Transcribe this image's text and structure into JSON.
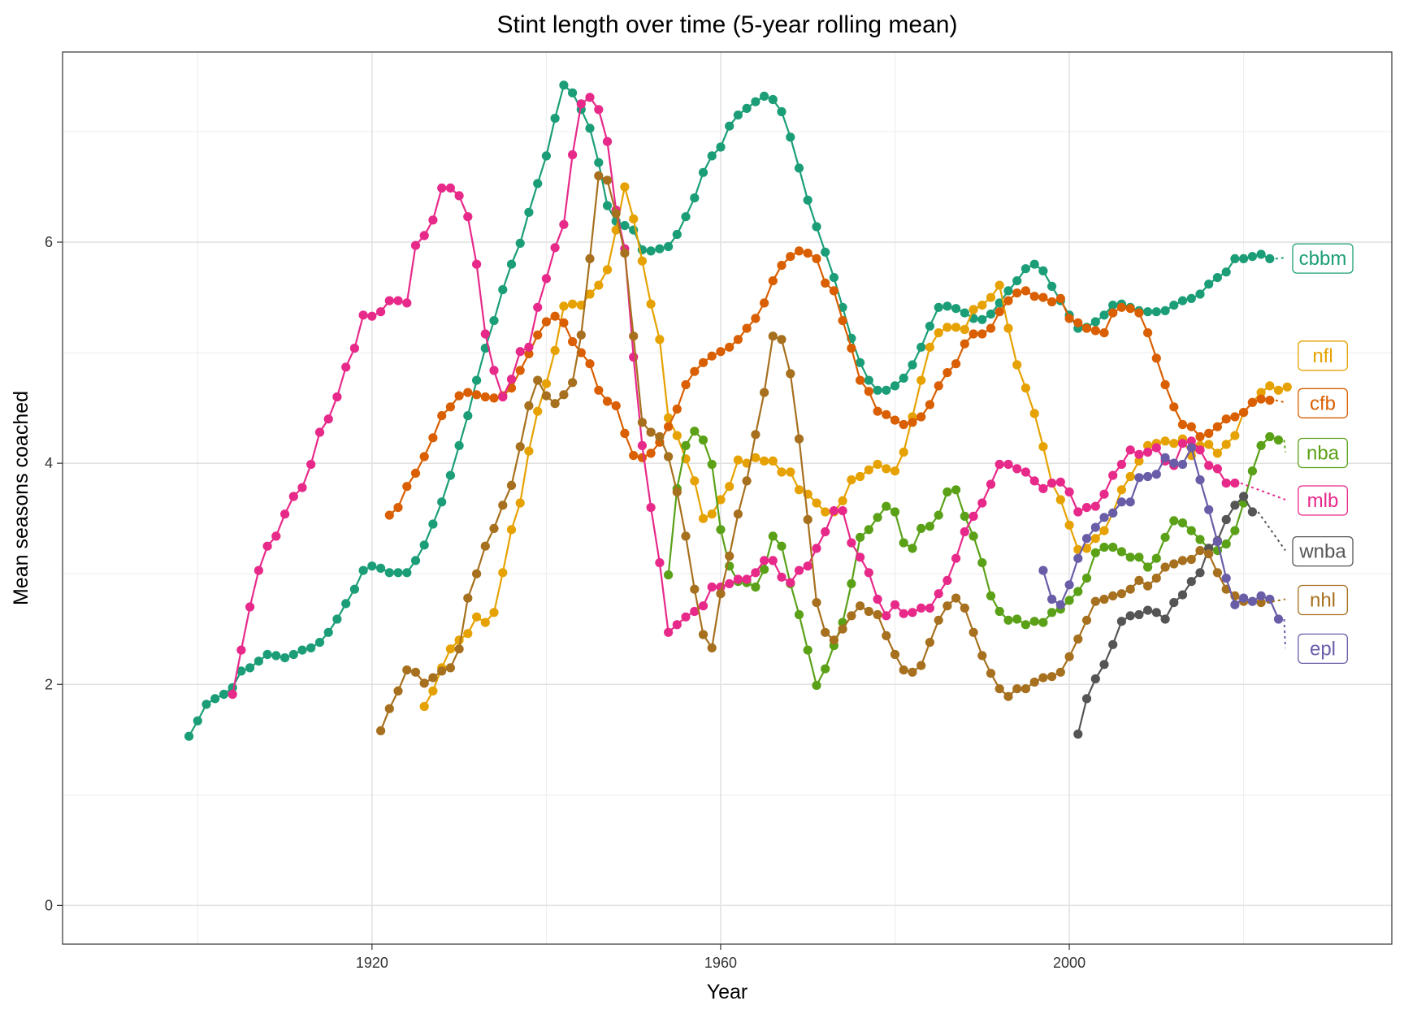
{
  "chart_data": {
    "type": "line",
    "title": "Stint length over time (5-year rolling mean)",
    "xlabel": "Year",
    "ylabel": "Mean seasons coached",
    "xlim": [
      1884.5,
      2037
    ],
    "ylim": [
      -0.35,
      7.72
    ],
    "x_ticks": [
      1920,
      1960,
      2000
    ],
    "y_ticks": [
      0,
      2,
      4,
      6
    ],
    "grid": true,
    "legend": "direct-labels-right",
    "series": [
      {
        "name": "cbbm",
        "color": "#1B9E77",
        "label_y": 5.86,
        "start": 1899,
        "values": [
          1.53,
          1.67,
          1.82,
          1.87,
          1.91,
          1.97,
          2.12,
          2.15,
          2.21,
          2.27,
          2.26,
          2.24,
          2.27,
          2.31,
          2.33,
          2.38,
          2.47,
          2.59,
          2.73,
          2.86,
          3.03,
          3.07,
          3.05,
          3.01,
          3.01,
          3.01,
          3.12,
          3.26,
          3.45,
          3.65,
          3.89,
          4.16,
          4.43,
          4.75,
          5.04,
          5.29,
          5.57,
          5.8,
          5.99,
          6.27,
          6.53,
          6.78,
          7.12,
          7.42,
          7.35,
          7.2,
          7.03,
          6.72,
          6.33,
          6.19,
          6.15,
          6.11,
          5.93,
          5.92,
          5.94,
          5.96,
          6.07,
          6.23,
          6.4,
          6.63,
          6.78,
          6.86,
          7.05,
          7.15,
          7.21,
          7.27,
          7.32,
          7.29,
          7.18,
          6.95,
          6.67,
          6.38,
          6.14,
          5.91,
          5.68,
          5.41,
          5.13,
          4.91,
          4.75,
          4.66,
          4.66,
          4.7,
          4.77,
          4.89,
          5.05,
          5.24,
          5.41,
          5.42,
          5.4,
          5.36,
          5.31,
          5.3,
          5.35,
          5.45,
          5.56,
          5.65,
          5.76,
          5.8,
          5.74,
          5.6,
          5.47,
          5.34,
          5.22,
          5.23,
          5.28,
          5.34,
          5.43,
          5.44,
          5.41,
          5.38,
          5.37,
          5.37,
          5.38,
          5.43,
          5.47,
          5.49,
          5.53,
          5.62,
          5.68,
          5.73,
          5.85,
          5.85,
          5.87,
          5.89,
          5.85
        ]
      },
      {
        "name": "nfl",
        "color": "#E6A202",
        "label_y": 4.98,
        "start": 1926,
        "values": [
          1.8,
          1.94,
          2.15,
          2.32,
          2.4,
          2.46,
          2.61,
          2.56,
          2.65,
          3.01,
          3.4,
          3.64,
          4.11,
          4.47,
          4.72,
          5.02,
          5.42,
          5.44,
          5.43,
          5.53,
          5.61,
          5.75,
          6.11,
          6.5,
          6.21,
          5.83,
          5.44,
          5.12,
          4.41,
          4.25,
          4.04,
          3.84,
          3.5,
          3.54,
          3.67,
          3.79,
          4.03,
          4.0,
          4.05,
          4.02,
          4.02,
          3.92,
          3.92,
          3.76,
          3.72,
          3.64,
          3.56,
          3.56,
          3.66,
          3.85,
          3.88,
          3.94,
          3.99,
          3.95,
          3.93,
          4.1,
          4.42,
          4.75,
          5.05,
          5.18,
          5.23,
          5.23,
          5.21,
          5.39,
          5.43,
          5.5,
          5.61,
          5.22,
          4.89,
          4.68,
          4.45,
          4.15,
          3.82,
          3.67,
          3.44,
          3.22,
          3.23,
          3.32,
          3.39,
          3.55,
          3.76,
          3.88,
          4.02,
          4.16,
          4.18,
          4.2,
          4.18,
          4.22,
          4.07,
          4.16,
          4.17,
          4.09,
          4.17,
          4.25,
          4.46,
          4.55,
          4.64,
          4.7,
          4.66,
          4.69
        ]
      },
      {
        "name": "cfb",
        "color": "#D95F02",
        "label_y": 4.55,
        "start": 1922,
        "values": [
          3.53,
          3.6,
          3.79,
          3.91,
          4.06,
          4.23,
          4.43,
          4.51,
          4.61,
          4.64,
          4.62,
          4.6,
          4.59,
          4.61,
          4.68,
          4.84,
          4.99,
          5.16,
          5.28,
          5.33,
          5.27,
          5.1,
          5.0,
          4.9,
          4.66,
          4.56,
          4.52,
          4.27,
          4.07,
          4.05,
          4.09,
          4.19,
          4.33,
          4.49,
          4.71,
          4.83,
          4.91,
          4.97,
          5.01,
          5.05,
          5.12,
          5.22,
          5.31,
          5.45,
          5.65,
          5.79,
          5.87,
          5.92,
          5.9,
          5.85,
          5.63,
          5.56,
          5.29,
          5.04,
          4.75,
          4.65,
          4.47,
          4.44,
          4.39,
          4.35,
          4.37,
          4.42,
          4.53,
          4.7,
          4.82,
          4.9,
          5.08,
          5.17,
          5.17,
          5.22,
          5.37,
          5.47,
          5.54,
          5.56,
          5.51,
          5.5,
          5.46,
          5.49,
          5.31,
          5.27,
          5.22,
          5.2,
          5.18,
          5.36,
          5.41,
          5.4,
          5.36,
          5.18,
          4.95,
          4.71,
          4.51,
          4.35,
          4.33,
          4.24,
          4.27,
          4.33,
          4.4,
          4.42,
          4.46,
          4.55,
          4.58,
          4.57
        ]
      },
      {
        "name": "nba",
        "color": "#5AA118",
        "label_y": 4.1,
        "start": 1954,
        "values": [
          2.99,
          3.77,
          4.16,
          4.29,
          4.21,
          3.99,
          3.4,
          3.07,
          2.93,
          2.92,
          2.88,
          3.04,
          3.34,
          3.25,
          2.91,
          2.63,
          2.31,
          1.99,
          2.14,
          2.35,
          2.56,
          2.91,
          3.33,
          3.4,
          3.51,
          3.61,
          3.56,
          3.28,
          3.23,
          3.41,
          3.43,
          3.53,
          3.74,
          3.76,
          3.52,
          3.34,
          3.1,
          2.8,
          2.66,
          2.58,
          2.59,
          2.54,
          2.57,
          2.56,
          2.65,
          2.68,
          2.76,
          2.84,
          2.96,
          3.19,
          3.24,
          3.24,
          3.2,
          3.15,
          3.15,
          3.06,
          3.14,
          3.33,
          3.48,
          3.46,
          3.39,
          3.31,
          3.23,
          3.21,
          3.27,
          3.39,
          3.64,
          3.93,
          4.16,
          4.24,
          4.21
        ]
      },
      {
        "name": "mlb",
        "color": "#E7298A",
        "label_y": 3.67,
        "start": 1904,
        "values": [
          1.91,
          2.31,
          2.7,
          3.03,
          3.25,
          3.34,
          3.54,
          3.7,
          3.78,
          3.99,
          4.28,
          4.4,
          4.6,
          4.87,
          5.04,
          5.34,
          5.33,
          5.37,
          5.47,
          5.47,
          5.45,
          5.97,
          6.06,
          6.2,
          6.49,
          6.49,
          6.42,
          6.23,
          5.8,
          5.17,
          4.84,
          4.6,
          4.76,
          5.01,
          5.05,
          5.41,
          5.67,
          5.95,
          6.16,
          6.79,
          7.25,
          7.31,
          7.2,
          6.91,
          6.29,
          5.94,
          4.96,
          4.16,
          3.6,
          3.1,
          2.47,
          2.54,
          2.61,
          2.66,
          2.71,
          2.88,
          2.88,
          2.91,
          2.95,
          2.95,
          3.01,
          3.12,
          3.12,
          2.97,
          2.92,
          3.03,
          3.07,
          3.23,
          3.38,
          3.57,
          3.57,
          3.28,
          3.15,
          3.01,
          2.77,
          2.62,
          2.72,
          2.64,
          2.65,
          2.69,
          2.69,
          2.82,
          2.94,
          3.14,
          3.38,
          3.52,
          3.64,
          3.81,
          3.99,
          3.99,
          3.95,
          3.92,
          3.84,
          3.77,
          3.82,
          3.83,
          3.74,
          3.56,
          3.6,
          3.61,
          3.72,
          3.89,
          3.99,
          4.12,
          4.08,
          4.1,
          4.14,
          4.02,
          3.98,
          4.18,
          4.2,
          4.12,
          3.98,
          3.95,
          3.82,
          3.82
        ]
      },
      {
        "name": "wnba",
        "color": "#555555",
        "label_y": 3.21,
        "start": 2001,
        "values": [
          1.55,
          1.87,
          2.05,
          2.18,
          2.36,
          2.57,
          2.62,
          2.63,
          2.67,
          2.65,
          2.59,
          2.74,
          2.81,
          2.93,
          3.01,
          3.23,
          3.3,
          3.49,
          3.62,
          3.7,
          3.56
        ]
      },
      {
        "name": "nhl",
        "color": "#A6701E",
        "label_y": 2.77,
        "start": 1921,
        "values": [
          1.58,
          1.78,
          1.94,
          2.13,
          2.11,
          2.01,
          2.06,
          2.12,
          2.15,
          2.32,
          2.78,
          3.0,
          3.25,
          3.41,
          3.62,
          3.8,
          4.15,
          4.52,
          4.75,
          4.61,
          4.54,
          4.62,
          4.73,
          5.16,
          5.85,
          6.6,
          6.56,
          6.26,
          5.9,
          5.15,
          4.37,
          4.28,
          4.24,
          4.06,
          3.74,
          3.34,
          2.86,
          2.45,
          2.33,
          2.82,
          3.16,
          3.54,
          3.84,
          4.26,
          4.64,
          5.15,
          5.12,
          4.81,
          4.22,
          3.49,
          2.74,
          2.47,
          2.4,
          2.5,
          2.62,
          2.71,
          2.66,
          2.63,
          2.44,
          2.27,
          2.13,
          2.11,
          2.17,
          2.38,
          2.58,
          2.71,
          2.78,
          2.69,
          2.47,
          2.26,
          2.1,
          1.96,
          1.89,
          1.96,
          1.96,
          2.02,
          2.06,
          2.07,
          2.11,
          2.25,
          2.41,
          2.58,
          2.75,
          2.77,
          2.8,
          2.82,
          2.86,
          2.94,
          2.89,
          2.96,
          3.06,
          3.09,
          3.12,
          3.13,
          3.21,
          3.18,
          3.01,
          2.86,
          2.8,
          2.75,
          2.75,
          2.74
        ]
      },
      {
        "name": "epl",
        "color": "#6A5DA8",
        "label_y": 2.33,
        "start": 1997,
        "values": [
          3.03,
          2.77,
          2.72,
          2.9,
          3.14,
          3.32,
          3.42,
          3.51,
          3.55,
          3.65,
          3.65,
          3.87,
          3.88,
          3.9,
          4.05,
          4.0,
          3.99,
          4.14,
          3.85,
          3.58,
          3.29,
          2.96,
          2.72,
          2.78,
          2.75,
          2.8,
          2.77,
          2.59
        ]
      }
    ]
  }
}
